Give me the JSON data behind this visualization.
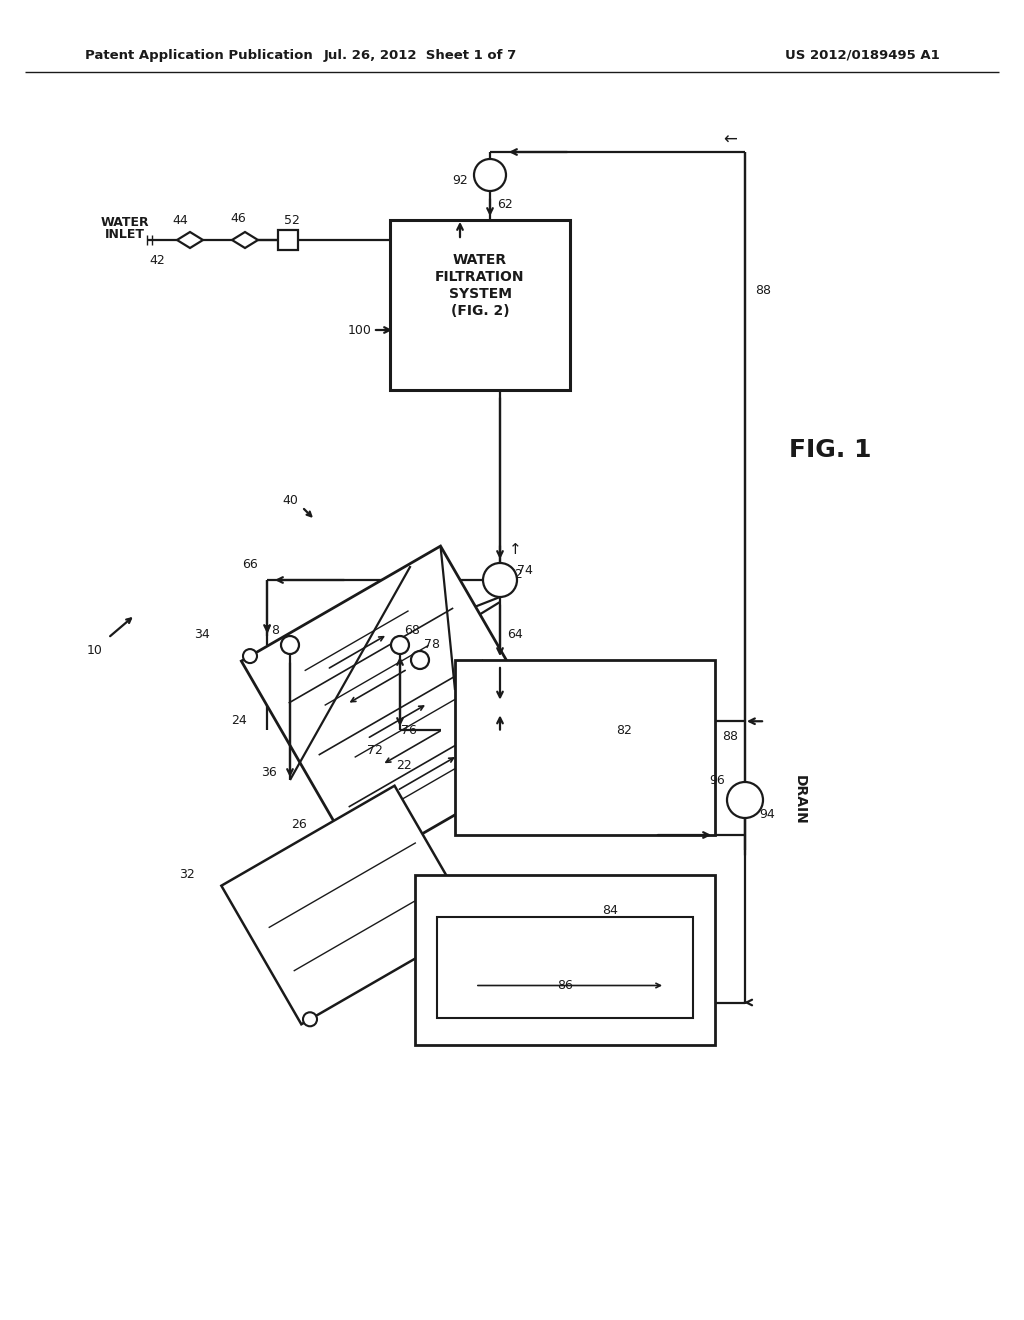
{
  "bg_color": "#ffffff",
  "lc": "#1a1a1a",
  "lw": 1.6,
  "header_left": "Patent Application Publication",
  "header_center": "Jul. 26, 2012  Sheet 1 of 7",
  "header_right": "US 2012/0189495 A1",
  "fig_label": "FIG. 1",
  "wfs_text": [
    "WATER",
    "FILTRATION",
    "SYSTEM",
    "(FIG. 2)"
  ],
  "drain_text": "DRAIN",
  "water_inlet_text": [
    "WATER",
    "INLET"
  ]
}
